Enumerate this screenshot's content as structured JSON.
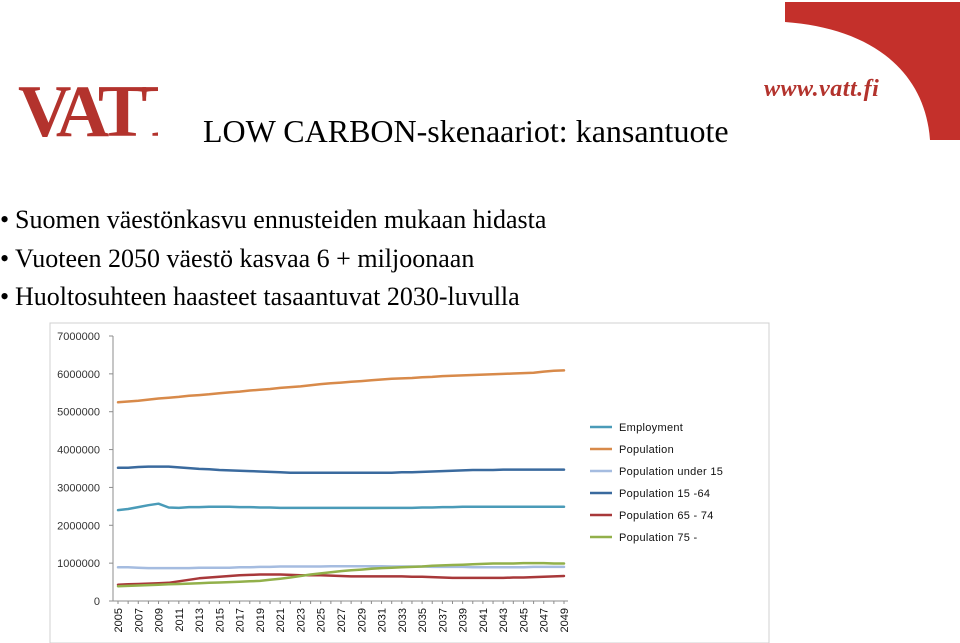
{
  "header": {
    "logo_text": "VATT",
    "url": "www.vatt.fi",
    "title": "LOW CARBON-skenaariot: kansantuote"
  },
  "bullets": [
    "Suomen väestönkasvu ennusteiden mukaan hidasta",
    "Vuoteen 2050 väestö kasvaa 6 + miljoonaan",
    "Huoltosuhteen haasteet tasaantuvat 2030-luvulla"
  ],
  "colors": {
    "brand_red": "#b3332d",
    "ribbon": "#c4302b"
  },
  "chart_data": {
    "type": "line",
    "x": [
      2005,
      2006,
      2007,
      2008,
      2009,
      2010,
      2011,
      2012,
      2013,
      2014,
      2015,
      2016,
      2017,
      2018,
      2019,
      2020,
      2021,
      2022,
      2023,
      2024,
      2025,
      2026,
      2027,
      2028,
      2029,
      2030,
      2031,
      2032,
      2033,
      2034,
      2035,
      2036,
      2037,
      2038,
      2039,
      2040,
      2041,
      2042,
      2043,
      2044,
      2045,
      2046,
      2047,
      2048,
      2049
    ],
    "x_tick_labels": [
      "2005",
      "2007",
      "2009",
      "2011",
      "2013",
      "2015",
      "2017",
      "2019",
      "2021",
      "2023",
      "2025",
      "2027",
      "2029",
      "2031",
      "2033",
      "2035",
      "2037",
      "2039",
      "2041",
      "2043",
      "2045",
      "2047",
      "2049"
    ],
    "y_tick_labels": [
      "0",
      "1000000",
      "2000000",
      "3000000",
      "4000000",
      "5000000",
      "6000000",
      "7000000"
    ],
    "ylim": [
      0,
      7000000
    ],
    "grid": false,
    "legend_position": "right",
    "series": [
      {
        "name": "Employment",
        "color": "#4a9bb8",
        "values": [
          2400000,
          2430000,
          2480000,
          2530000,
          2570000,
          2470000,
          2460000,
          2480000,
          2480000,
          2490000,
          2490000,
          2490000,
          2480000,
          2480000,
          2470000,
          2470000,
          2460000,
          2460000,
          2460000,
          2460000,
          2460000,
          2460000,
          2460000,
          2460000,
          2460000,
          2460000,
          2460000,
          2460000,
          2460000,
          2460000,
          2470000,
          2470000,
          2480000,
          2480000,
          2490000,
          2490000,
          2490000,
          2490000,
          2490000,
          2490000,
          2490000,
          2490000,
          2490000,
          2490000,
          2490000
        ]
      },
      {
        "name": "Population",
        "color": "#d88a4a",
        "values": [
          5250000,
          5270000,
          5290000,
          5320000,
          5350000,
          5370000,
          5390000,
          5420000,
          5440000,
          5460000,
          5490000,
          5510000,
          5530000,
          5560000,
          5580000,
          5600000,
          5630000,
          5650000,
          5670000,
          5700000,
          5730000,
          5750000,
          5770000,
          5790000,
          5810000,
          5830000,
          5850000,
          5870000,
          5880000,
          5890000,
          5910000,
          5920000,
          5940000,
          5950000,
          5960000,
          5970000,
          5980000,
          5990000,
          6000000,
          6010000,
          6020000,
          6030000,
          6060000,
          6080000,
          6090000
        ]
      },
      {
        "name": "Population under 15",
        "color": "#a5bce0",
        "values": [
          890000,
          890000,
          880000,
          870000,
          870000,
          870000,
          870000,
          870000,
          880000,
          880000,
          880000,
          880000,
          890000,
          890000,
          900000,
          900000,
          910000,
          910000,
          910000,
          910000,
          910000,
          920000,
          920000,
          920000,
          920000,
          920000,
          920000,
          910000,
          910000,
          910000,
          910000,
          900000,
          900000,
          900000,
          900000,
          890000,
          890000,
          890000,
          890000,
          890000,
          890000,
          900000,
          900000,
          900000,
          900000
        ]
      },
      {
        "name": "Population 15 -64",
        "color": "#3a6a9e",
        "values": [
          3520000,
          3520000,
          3540000,
          3550000,
          3550000,
          3550000,
          3530000,
          3510000,
          3490000,
          3480000,
          3460000,
          3450000,
          3440000,
          3430000,
          3420000,
          3410000,
          3400000,
          3390000,
          3390000,
          3390000,
          3390000,
          3390000,
          3390000,
          3390000,
          3390000,
          3390000,
          3390000,
          3390000,
          3400000,
          3400000,
          3410000,
          3420000,
          3430000,
          3440000,
          3450000,
          3460000,
          3460000,
          3460000,
          3470000,
          3470000,
          3470000,
          3470000,
          3470000,
          3470000,
          3470000
        ]
      },
      {
        "name": "Population 65 - 74",
        "color": "#a8383a",
        "values": [
          430000,
          440000,
          450000,
          460000,
          470000,
          480000,
          520000,
          560000,
          600000,
          620000,
          640000,
          660000,
          680000,
          690000,
          700000,
          700000,
          700000,
          690000,
          680000,
          680000,
          680000,
          670000,
          660000,
          650000,
          650000,
          650000,
          650000,
          650000,
          650000,
          640000,
          640000,
          630000,
          620000,
          610000,
          610000,
          610000,
          610000,
          610000,
          610000,
          620000,
          620000,
          630000,
          640000,
          650000,
          660000
        ]
      },
      {
        "name": "Population 75 -",
        "color": "#92b04a",
        "values": [
          390000,
          400000,
          410000,
          420000,
          430000,
          440000,
          450000,
          460000,
          470000,
          480000,
          490000,
          500000,
          510000,
          520000,
          530000,
          560000,
          590000,
          620000,
          660000,
          700000,
          730000,
          760000,
          790000,
          810000,
          830000,
          850000,
          870000,
          880000,
          890000,
          900000,
          910000,
          930000,
          940000,
          950000,
          960000,
          970000,
          980000,
          990000,
          990000,
          990000,
          1000000,
          1000000,
          1000000,
          990000,
          990000
        ]
      }
    ]
  }
}
